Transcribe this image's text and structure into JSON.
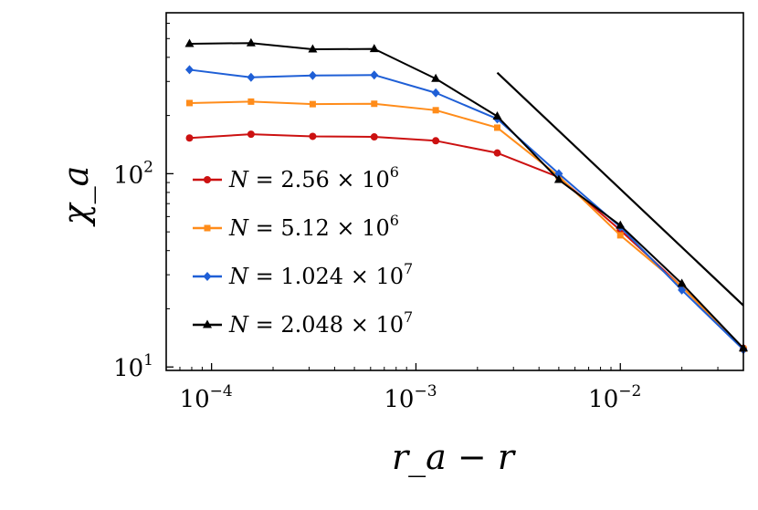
{
  "chart_data": {
    "type": "line",
    "xlabel": "r_a − r",
    "ylabel": "χ_a",
    "x_scale": "log",
    "y_scale": "log",
    "xlim": [
      6e-05,
      0.04
    ],
    "ylim": [
      9.6,
      680
    ],
    "x_ticks": [
      {
        "value": 0.0001,
        "base": "10",
        "exp": "−4"
      },
      {
        "value": 0.001,
        "base": "10",
        "exp": "−3"
      },
      {
        "value": 0.01,
        "base": "10",
        "exp": "−2"
      }
    ],
    "y_ticks": [
      {
        "value": 10,
        "base": "10",
        "exp": "1"
      },
      {
        "value": 100,
        "base": "10",
        "exp": "2"
      }
    ],
    "grid": false,
    "legend_position": "lower-left",
    "series": [
      {
        "name": "N = 2.56 × 10^6",
        "legend_main": "N = 2.56 × 10",
        "legend_exp": "6",
        "color": "#cc1111",
        "marker": "circle",
        "x": [
          7.8e-05,
          0.000156,
          0.0003125,
          0.000625,
          0.00125,
          0.0025,
          0.005,
          0.01,
          0.02,
          0.04
        ],
        "y": [
          153,
          160,
          156,
          155,
          148,
          128,
          96,
          51,
          26,
          12.5
        ]
      },
      {
        "name": "N = 5.12 × 10^6",
        "legend_main": "N = 5.12 × 10",
        "legend_exp": "6",
        "color": "#ff8c1a",
        "marker": "square",
        "x": [
          7.8e-05,
          0.000156,
          0.0003125,
          0.000625,
          0.00125,
          0.0025,
          0.005,
          0.01,
          0.02,
          0.04
        ],
        "y": [
          232,
          236,
          229,
          230,
          213,
          173,
          97,
          48,
          26,
          12.4
        ]
      },
      {
        "name": "N = 1.024 × 10^7",
        "legend_main": "N = 1.024 × 10",
        "legend_exp": "7",
        "color": "#1f5fd6",
        "marker": "diamond",
        "x": [
          7.8e-05,
          0.000156,
          0.0003125,
          0.000625,
          0.00125,
          0.0025,
          0.005,
          0.01,
          0.02,
          0.04
        ],
        "y": [
          345,
          315,
          322,
          324,
          262,
          192,
          100,
          53,
          25,
          12.3
        ]
      },
      {
        "name": "N = 2.048 × 10^7",
        "legend_main": "N = 2.048 × 10",
        "legend_exp": "7",
        "color": "#000000",
        "marker": "triangle",
        "x": [
          7.8e-05,
          0.000156,
          0.0003125,
          0.000625,
          0.00125,
          0.0025,
          0.005,
          0.01,
          0.02,
          0.04
        ],
        "y": [
          470,
          474,
          440,
          442,
          310,
          198,
          93,
          54,
          27,
          12.5
        ]
      }
    ],
    "reference_line": {
      "color": "#000000",
      "x": [
        0.0025,
        0.045
      ],
      "y": [
        333,
        18.5
      ]
    }
  }
}
